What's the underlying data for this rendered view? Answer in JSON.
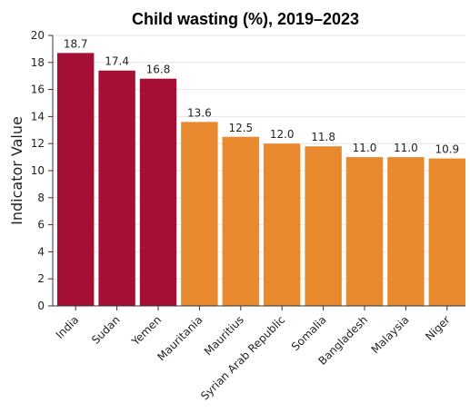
{
  "chart_data": {
    "type": "bar",
    "title": "Child wasting (%), 2019–2023",
    "xlabel": "",
    "ylabel": "Indicator Value",
    "ylim": [
      0,
      20
    ],
    "yticks": [
      "0",
      "2",
      "4",
      "6",
      "8",
      "10",
      "12",
      "14",
      "16",
      "18",
      "20"
    ],
    "grid": true,
    "categories": [
      "India",
      "Sudan",
      "Yemen",
      "Mauritania",
      "Mauritius",
      "Syrian Arab Republic",
      "Somalia",
      "Bangladesh",
      "Malaysia",
      "Niger"
    ],
    "values": [
      18.7,
      17.4,
      16.8,
      13.6,
      12.5,
      12.0,
      11.8,
      11.0,
      11.0,
      10.9
    ],
    "data_labels": [
      "18.7",
      "17.4",
      "16.8",
      "13.6",
      "12.5",
      "12.0",
      "11.8",
      "11.0",
      "11.0",
      "10.9"
    ],
    "bar_colors": [
      "#a50f35",
      "#a50f35",
      "#a50f35",
      "#e8892e",
      "#e8892e",
      "#e8892e",
      "#e8892e",
      "#e8892e",
      "#e8892e",
      "#e8892e"
    ],
    "legend": "none"
  }
}
